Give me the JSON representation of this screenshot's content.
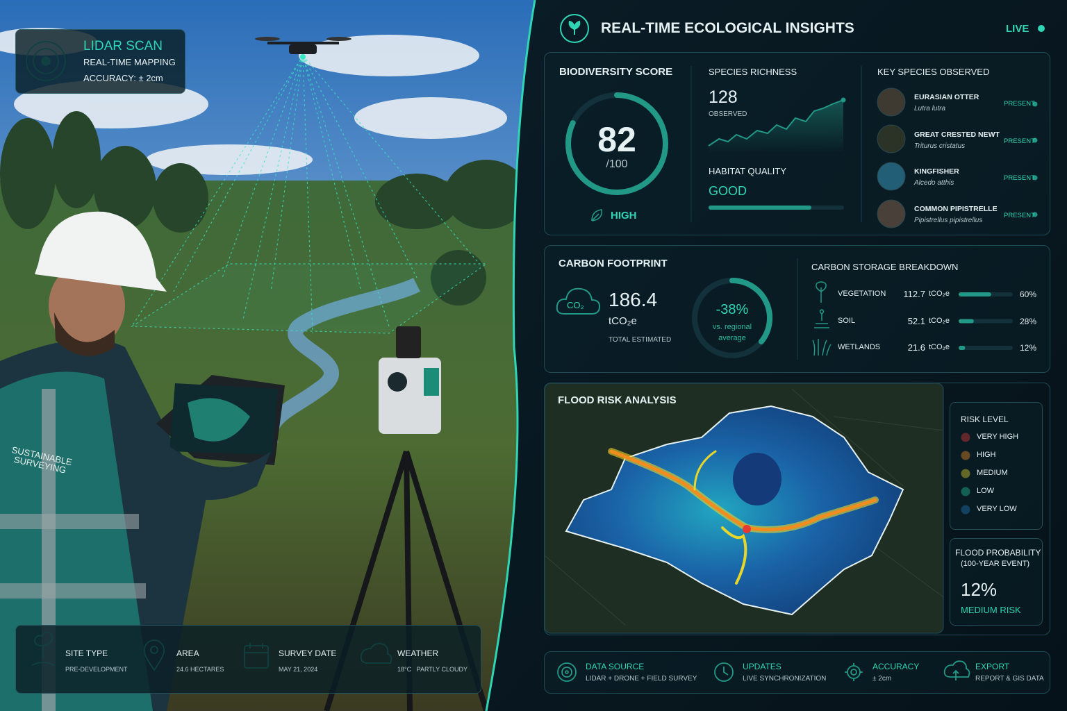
{
  "lidar": {
    "title": "LIDAR SCAN",
    "subtitle": "REAL-TIME MAPPING",
    "accuracy": "ACCURACY: ± 2cm"
  },
  "vest_text": "SUSTAINABLE SURVEYING",
  "site_info": [
    {
      "label": "SITE TYPE",
      "value": "PRE-DEVELOPMENT"
    },
    {
      "label": "AREA",
      "value": "24.6 HECTARES"
    },
    {
      "label": "SURVEY DATE",
      "value": "MAY 21, 2024"
    },
    {
      "label": "WEATHER",
      "value": "18°C   PARTLY CLOUDY"
    }
  ],
  "header": {
    "title": "REAL-TIME ECOLOGICAL INSIGHTS",
    "status": "LIVE"
  },
  "biodiversity": {
    "title": "BIODIVERSITY SCORE",
    "score": 82,
    "max": "/100",
    "rating": "HIGH"
  },
  "species_richness": {
    "title": "SPECIES RICHNESS",
    "value": 128,
    "note": "OBSERVED"
  },
  "habitat_quality": {
    "title": "HABITAT QUALITY",
    "value": "GOOD"
  },
  "key_species": {
    "title": "KEY SPECIES OBSERVED",
    "items": [
      {
        "name": "EURASIAN OTTER",
        "latin": "Lutra lutra",
        "status": "PRESENT"
      },
      {
        "name": "GREAT CRESTED NEWT",
        "latin": "Triturus cristatus",
        "status": "PRESENT"
      },
      {
        "name": "KINGFISHER",
        "latin": "Alcedo atthis",
        "status": "PRESENT"
      },
      {
        "name": "COMMON PIPISTRELLE",
        "latin": "Pipistrellus pipistrellus",
        "status": "PRESENT"
      }
    ]
  },
  "carbon": {
    "title": "CARBON FOOTPRINT",
    "icon_text": "CO₂",
    "value": "186.4",
    "unit": "tCO₂e",
    "note": "TOTAL ESTIMATED",
    "change": "-38%",
    "change_note": "vs. regional average",
    "breakdown_title": "CARBON STORAGE BREAKDOWN",
    "breakdown": [
      {
        "name": "VEGETATION",
        "value": "112.7",
        "unit": "tCO₂e",
        "share": "60%"
      },
      {
        "name": "SOIL",
        "value": "52.1",
        "unit": "tCO₂e",
        "share": "28%"
      },
      {
        "name": "WETLANDS",
        "value": "21.6",
        "unit": "tCO₂e",
        "share": "12%"
      }
    ]
  },
  "flood": {
    "title": "FLOOD RISK ANALYSIS",
    "legend_title": "RISK LEVEL",
    "levels": [
      {
        "name": "VERY HIGH",
        "color": "#e53935"
      },
      {
        "name": "HIGH",
        "color": "#f28c1e"
      },
      {
        "name": "MEDIUM",
        "color": "#e8d62a"
      },
      {
        "name": "LOW",
        "color": "#22c29a"
      },
      {
        "name": "VERY LOW",
        "color": "#1f78b4"
      }
    ],
    "probability_title": "FLOOD PROBABILITY",
    "probability_note": "(100-YEAR EVENT)",
    "probability": "12%",
    "risk": "MEDIUM RISK"
  },
  "footer": [
    {
      "label": "DATA SOURCE",
      "value": "LIDAR + DRONE + FIELD SURVEY"
    },
    {
      "label": "UPDATES",
      "value": "LIVE SYNCHRONIZATION"
    },
    {
      "label": "ACCURACY",
      "value": "± 2cm"
    },
    {
      "label": "EXPORT",
      "value": "REPORT & GIS DATA"
    }
  ]
}
